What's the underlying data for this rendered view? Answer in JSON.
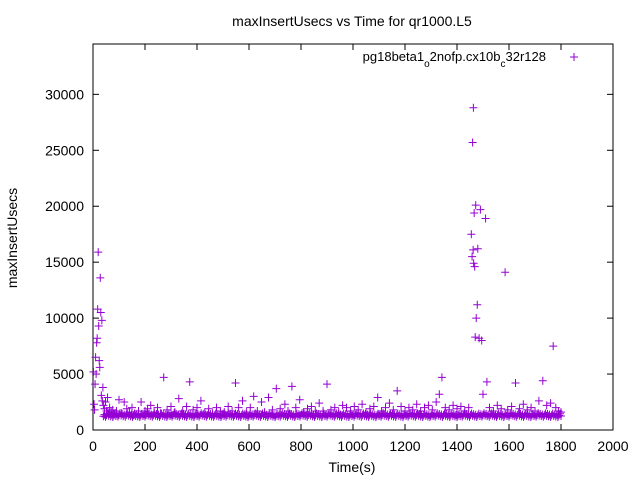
{
  "chart_data": {
    "type": "scatter",
    "title": "maxInsertUsecs vs Time for qr1000.L5",
    "xlabel": "Time(s)",
    "ylabel": "maxInsertUsecs",
    "xlim": [
      0,
      2000
    ],
    "ylim": [
      0,
      34500
    ],
    "xticks": [
      0,
      200,
      400,
      600,
      800,
      1000,
      1200,
      1400,
      1600,
      1800,
      2000
    ],
    "yticks": [
      0,
      5000,
      10000,
      15000,
      20000,
      25000,
      30000
    ],
    "grid": false,
    "legend_position": "top-right",
    "marker": "+",
    "color": "#9400d3",
    "series": [
      {
        "name": "pg18beta1_o2nofp.cx10b_c32r128",
        "legend_label": {
          "text": "pg18beta1",
          "sub1": "o",
          "mid": "2nofp.cx10b",
          "sub2": "c",
          "tail": "32r128"
        },
        "points": [
          [
            2,
            5200
          ],
          [
            4,
            2300
          ],
          [
            6,
            1800
          ],
          [
            8,
            4100
          ],
          [
            10,
            6500
          ],
          [
            12,
            5000
          ],
          [
            14,
            7800
          ],
          [
            16,
            8200
          ],
          [
            18,
            10800
          ],
          [
            20,
            15900
          ],
          [
            22,
            9300
          ],
          [
            24,
            6200
          ],
          [
            26,
            5600
          ],
          [
            28,
            13600
          ],
          [
            30,
            10500
          ],
          [
            32,
            3100
          ],
          [
            34,
            9800
          ],
          [
            36,
            2600
          ],
          [
            38,
            3800
          ],
          [
            40,
            2200
          ],
          [
            44,
            1900
          ],
          [
            48,
            2500
          ],
          [
            52,
            1700
          ],
          [
            56,
            2900
          ],
          [
            60,
            1500
          ],
          [
            64,
            2000
          ],
          [
            70,
            1600
          ],
          [
            76,
            1800
          ],
          [
            82,
            1400
          ],
          [
            90,
            1700
          ],
          [
            100,
            2700
          ],
          [
            110,
            1500
          ],
          [
            120,
            2500
          ],
          [
            130,
            1900
          ],
          [
            140,
            1600
          ],
          [
            150,
            2000
          ],
          [
            160,
            1400
          ],
          [
            175,
            1700
          ],
          [
            185,
            2500
          ],
          [
            200,
            1700
          ],
          [
            210,
            1900
          ],
          [
            222,
            2200
          ],
          [
            235,
            1600
          ],
          [
            248,
            2000
          ],
          [
            260,
            1500
          ],
          [
            272,
            4700
          ],
          [
            285,
            1800
          ],
          [
            300,
            2100
          ],
          [
            315,
            1600
          ],
          [
            330,
            2800
          ],
          [
            345,
            1700
          ],
          [
            360,
            2100
          ],
          [
            372,
            4300
          ],
          [
            385,
            1800
          ],
          [
            400,
            2000
          ],
          [
            415,
            2600
          ],
          [
            430,
            1600
          ],
          [
            445,
            1900
          ],
          [
            460,
            1500
          ],
          [
            475,
            2000
          ],
          [
            490,
            1700
          ],
          [
            505,
            1600
          ],
          [
            520,
            2100
          ],
          [
            535,
            1700
          ],
          [
            548,
            4200
          ],
          [
            560,
            2000
          ],
          [
            575,
            2600
          ],
          [
            590,
            1600
          ],
          [
            605,
            2000
          ],
          [
            618,
            3000
          ],
          [
            632,
            1700
          ],
          [
            648,
            2500
          ],
          [
            660,
            1600
          ],
          [
            675,
            2900
          ],
          [
            690,
            1800
          ],
          [
            705,
            3700
          ],
          [
            720,
            1900
          ],
          [
            738,
            2300
          ],
          [
            750,
            1700
          ],
          [
            765,
            3900
          ],
          [
            780,
            2000
          ],
          [
            795,
            2700
          ],
          [
            810,
            1600
          ],
          [
            825,
            1900
          ],
          [
            840,
            2100
          ],
          [
            855,
            1700
          ],
          [
            870,
            2400
          ],
          [
            885,
            1700
          ],
          [
            900,
            4100
          ],
          [
            915,
            1800
          ],
          [
            930,
            2000
          ],
          [
            945,
            1600
          ],
          [
            960,
            2200
          ],
          [
            975,
            2000
          ],
          [
            990,
            1700
          ],
          [
            1005,
            2100
          ],
          [
            1020,
            1800
          ],
          [
            1035,
            2300
          ],
          [
            1050,
            1600
          ],
          [
            1065,
            1900
          ],
          [
            1080,
            2100
          ],
          [
            1095,
            2900
          ],
          [
            1110,
            1700
          ],
          [
            1125,
            2000
          ],
          [
            1140,
            2400
          ],
          [
            1155,
            1800
          ],
          [
            1170,
            3500
          ],
          [
            1185,
            2100
          ],
          [
            1200,
            1700
          ],
          [
            1215,
            2000
          ],
          [
            1230,
            1800
          ],
          [
            1245,
            2300
          ],
          [
            1260,
            1700
          ],
          [
            1275,
            2000
          ],
          [
            1290,
            2200
          ],
          [
            1305,
            1800
          ],
          [
            1320,
            2500
          ],
          [
            1332,
            3200
          ],
          [
            1342,
            4700
          ],
          [
            1355,
            2000
          ],
          [
            1370,
            1800
          ],
          [
            1385,
            2200
          ],
          [
            1400,
            1900
          ],
          [
            1415,
            2100
          ],
          [
            1430,
            1700
          ],
          [
            1445,
            2000
          ],
          [
            1455,
            17500
          ],
          [
            1458,
            15500
          ],
          [
            1460,
            25700
          ],
          [
            1462,
            16100
          ],
          [
            1463,
            28800
          ],
          [
            1464,
            14900
          ],
          [
            1466,
            19400
          ],
          [
            1468,
            14600
          ],
          [
            1470,
            8300
          ],
          [
            1472,
            20100
          ],
          [
            1474,
            10000
          ],
          [
            1478,
            11200
          ],
          [
            1480,
            16200
          ],
          [
            1485,
            8200
          ],
          [
            1490,
            19700
          ],
          [
            1495,
            8000
          ],
          [
            1500,
            3200
          ],
          [
            1510,
            18900
          ],
          [
            1515,
            4300
          ],
          [
            1525,
            2000
          ],
          [
            1540,
            1700
          ],
          [
            1555,
            2200
          ],
          [
            1570,
            1900
          ],
          [
            1585,
            14100
          ],
          [
            1595,
            1800
          ],
          [
            1610,
            2100
          ],
          [
            1625,
            4200
          ],
          [
            1640,
            1900
          ],
          [
            1655,
            2300
          ],
          [
            1670,
            1800
          ],
          [
            1685,
            2000
          ],
          [
            1700,
            1700
          ],
          [
            1715,
            2600
          ],
          [
            1730,
            4400
          ],
          [
            1745,
            2200
          ],
          [
            1760,
            2400
          ],
          [
            1770,
            7500
          ],
          [
            1780,
            2000
          ],
          [
            1790,
            1700
          ],
          [
            1800,
            1600
          ]
        ]
      }
    ]
  }
}
